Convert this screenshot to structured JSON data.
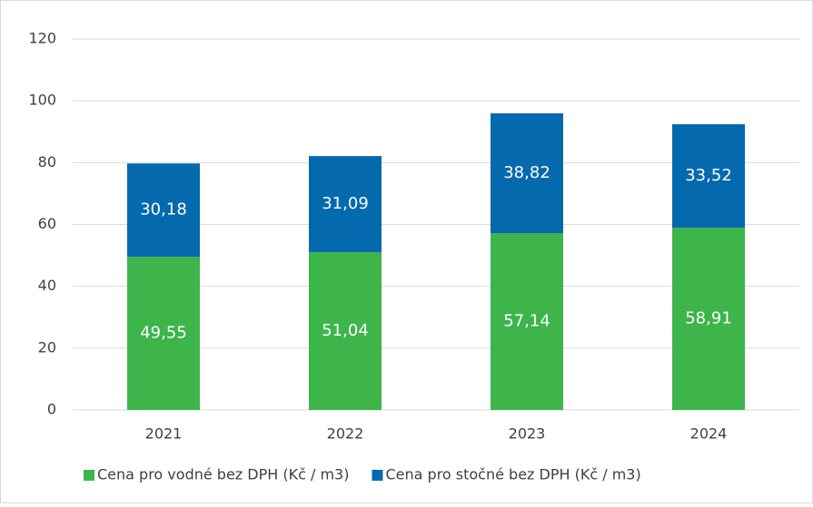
{
  "chart_data": {
    "type": "stacked_bar",
    "categories": [
      "2021",
      "2022",
      "2023",
      "2024"
    ],
    "series": [
      {
        "name": "Cena pro vodné bez DPH (Kč / m3)",
        "color": "#3db54b",
        "values": [
          49.55,
          51.04,
          57.14,
          58.91
        ],
        "value_labels": [
          "49,55",
          "51,04",
          "57,14",
          "58,91"
        ]
      },
      {
        "name": "Cena pro stočné bez DPH (Kč / m3)",
        "color": "#0569ae",
        "values": [
          30.18,
          31.09,
          38.82,
          33.52
        ],
        "value_labels": [
          "30,18",
          "31,09",
          "38,82",
          "33,52"
        ]
      }
    ],
    "ylim": [
      0,
      120
    ],
    "yticks": [
      0,
      20,
      40,
      60,
      80,
      100,
      120
    ],
    "grid": true,
    "legend": "bottom"
  }
}
